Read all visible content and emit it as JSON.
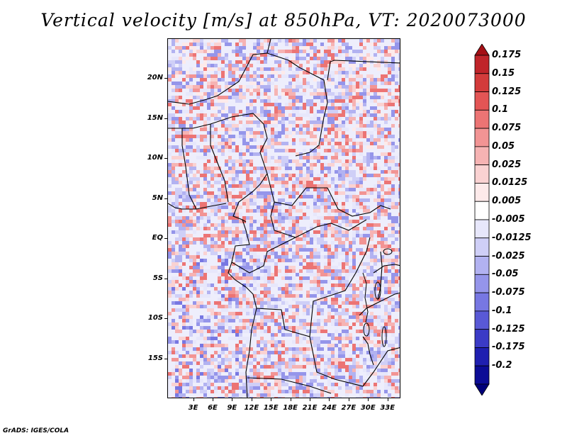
{
  "title": "Vertical velocity [m/s] at 850hPa, VT: 2020073000",
  "credit": "GrADS: IGES/COLA",
  "chart_data": {
    "type": "heatmap",
    "variable": "Vertical velocity",
    "units": "m/s",
    "level": "850hPa",
    "valid_time": "2020073000",
    "lon_range": [
      -1,
      35
    ],
    "lat_range": [
      -20,
      25
    ],
    "lat_ticks": [
      "20N",
      "15N",
      "10N",
      "5N",
      "EQ",
      "5S",
      "10S",
      "15S"
    ],
    "lat_values": [
      20,
      15,
      10,
      5,
      0,
      -5,
      -10,
      -15
    ],
    "lon_ticks": [
      "3E",
      "6E",
      "9E",
      "12E",
      "15E",
      "18E",
      "21E",
      "24E",
      "27E",
      "30E",
      "33E"
    ],
    "lon_values": [
      3,
      6,
      9,
      12,
      15,
      18,
      21,
      24,
      27,
      30,
      33
    ],
    "colorbar": {
      "labels": [
        "0.175",
        "0.15",
        "0.125",
        "0.1",
        "0.075",
        "0.05",
        "0.025",
        "0.0125",
        "0.005",
        "-0.005",
        "-0.0125",
        "-0.025",
        "-0.05",
        "-0.075",
        "-0.1",
        "-0.125",
        "-0.175",
        "-0.2"
      ],
      "colors": [
        "#a50f15",
        "#c0242a",
        "#d33b3b",
        "#e35555",
        "#ec7474",
        "#f29494",
        "#f6b3b3",
        "#fad2d2",
        "#fdeaea",
        "#ffffff",
        "#e7e7fb",
        "#cfcff7",
        "#b2b2f1",
        "#9595ea",
        "#7777e2",
        "#5959d6",
        "#3b3bc6",
        "#1f1fb0",
        "#0c0c96",
        "#00007a"
      ]
    }
  }
}
